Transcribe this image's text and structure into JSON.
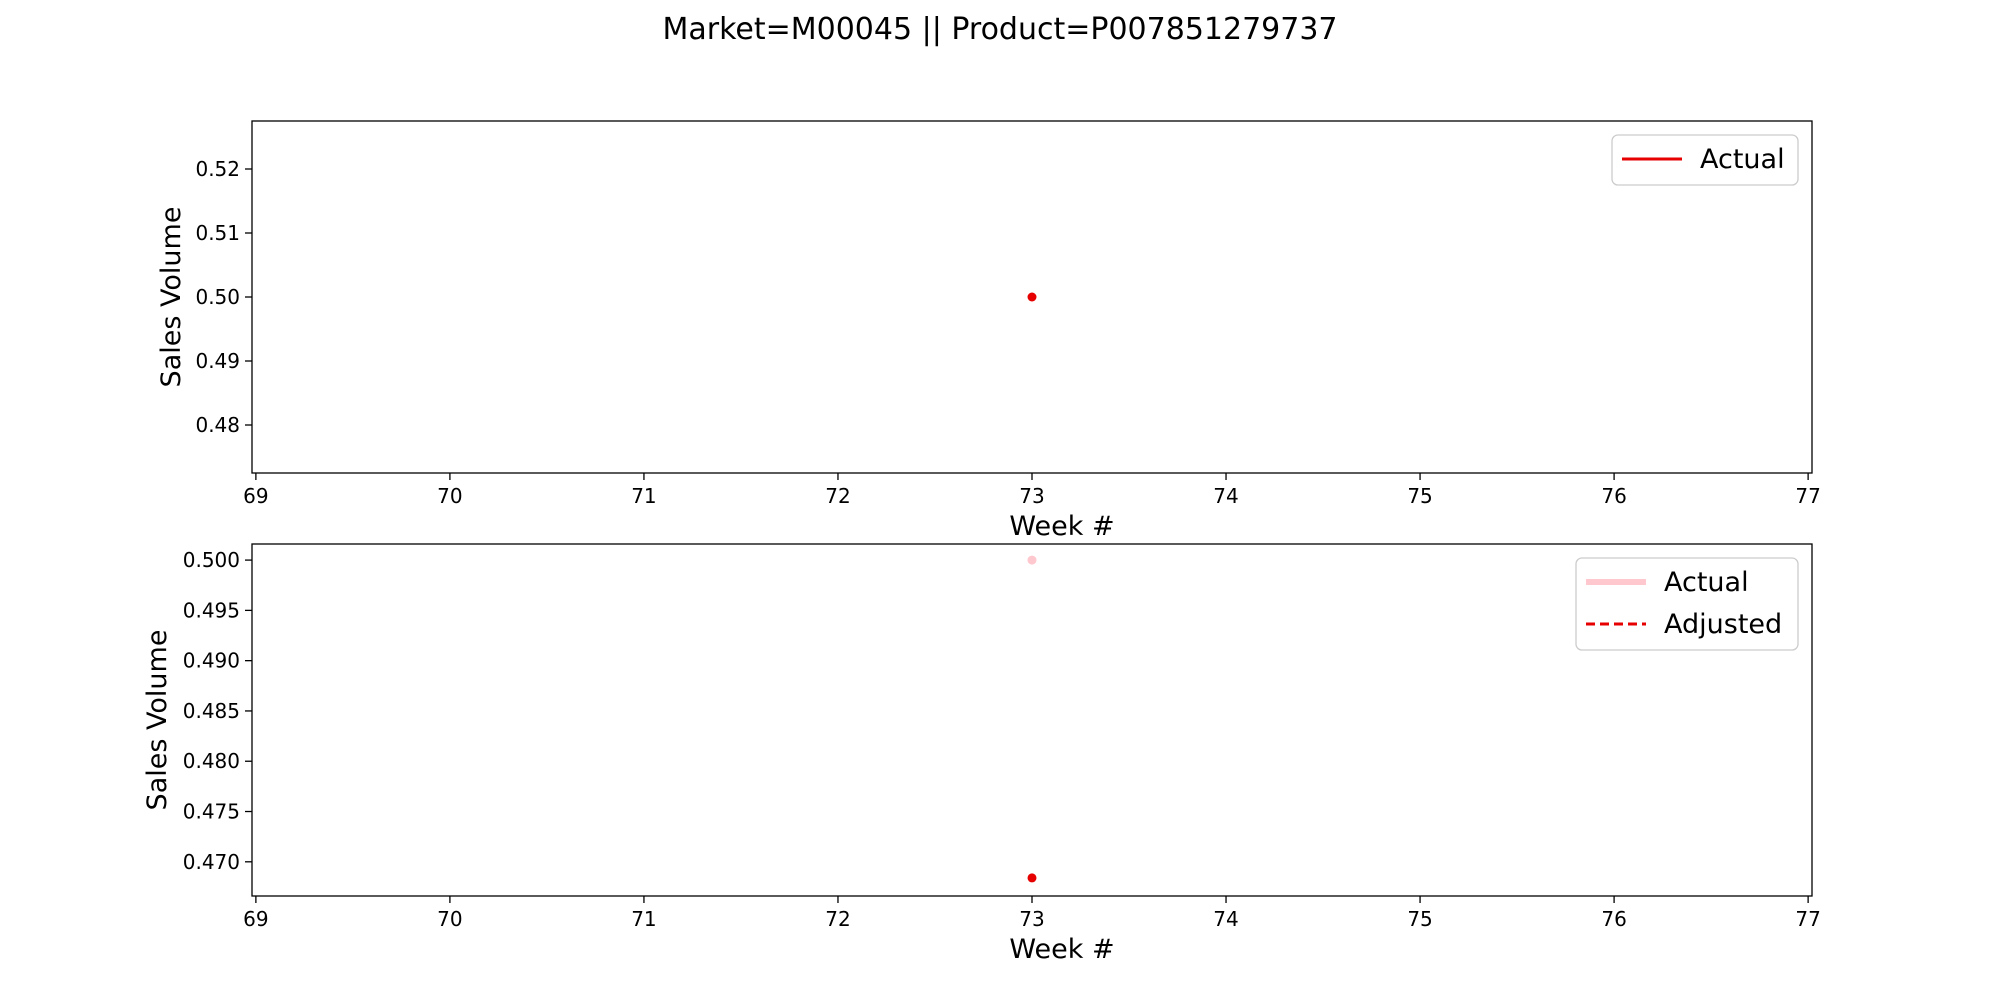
{
  "title": "Market=M00045 || Product=P007851279737",
  "colors": {
    "actual": "#e60000",
    "actual_faded": "#ffc8cf",
    "adjusted": "#e60000",
    "axis": "#000000",
    "legend_border": "#cccccc"
  },
  "chart_data": [
    {
      "type": "line",
      "xlabel": "Week #",
      "ylabel": "Sales Volume",
      "xlim": [
        68.98,
        77.02
      ],
      "ylim": [
        0.4725,
        0.5275
      ],
      "xticks": [
        69,
        70,
        71,
        72,
        73,
        74,
        75,
        76,
        77
      ],
      "yticks": [
        0.48,
        0.49,
        0.5,
        0.51,
        0.52
      ],
      "ytick_labels": [
        "0.48",
        "0.49",
        "0.50",
        "0.51",
        "0.52"
      ],
      "legend_position": "upper-right",
      "grid": false,
      "series": [
        {
          "name": "Actual",
          "x": [
            73
          ],
          "y": [
            0.5
          ],
          "style": "solid",
          "color_key": "actual"
        }
      ]
    },
    {
      "type": "line",
      "xlabel": "Week #",
      "ylabel": "Sales Volume",
      "xlim": [
        68.98,
        77.02
      ],
      "ylim": [
        0.4666,
        0.5016
      ],
      "xticks": [
        69,
        70,
        71,
        72,
        73,
        74,
        75,
        76,
        77
      ],
      "yticks": [
        0.47,
        0.475,
        0.48,
        0.485,
        0.49,
        0.495,
        0.5
      ],
      "ytick_labels": [
        "0.470",
        "0.475",
        "0.480",
        "0.485",
        "0.490",
        "0.495",
        "0.500"
      ],
      "legend_position": "upper-right",
      "grid": false,
      "series": [
        {
          "name": "Actual",
          "x": [
            73
          ],
          "y": [
            0.5
          ],
          "style": "solid-thick",
          "color_key": "actual_faded"
        },
        {
          "name": "Adjusted",
          "x": [
            73
          ],
          "y": [
            0.4684
          ],
          "style": "dashed",
          "color_key": "adjusted"
        }
      ]
    }
  ]
}
